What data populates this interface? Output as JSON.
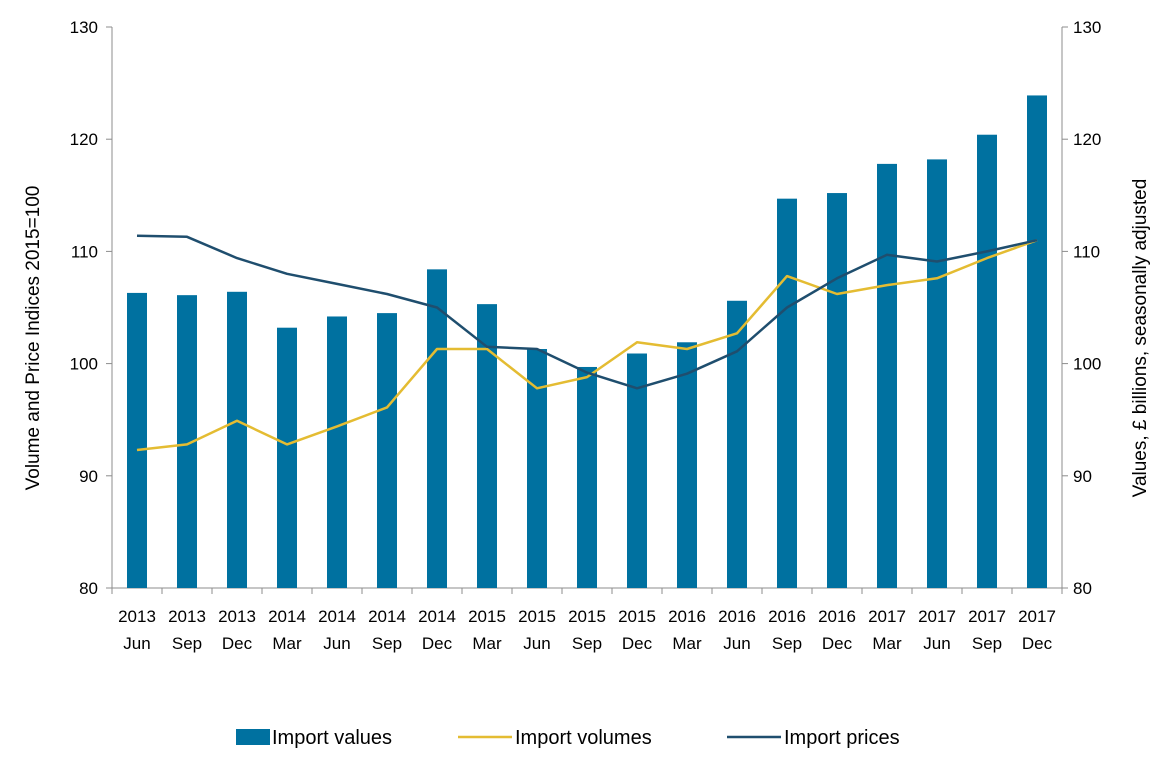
{
  "chart_data": {
    "type": "bar",
    "categories": [
      [
        "2013",
        "Jun"
      ],
      [
        "2013",
        "Sep"
      ],
      [
        "2013",
        "Dec"
      ],
      [
        "2014",
        "Mar"
      ],
      [
        "2014",
        "Jun"
      ],
      [
        "2014",
        "Sep"
      ],
      [
        "2014",
        "Dec"
      ],
      [
        "2015",
        "Mar"
      ],
      [
        "2015",
        "Jun"
      ],
      [
        "2015",
        "Sep"
      ],
      [
        "2015",
        "Dec"
      ],
      [
        "2016",
        "Mar"
      ],
      [
        "2016",
        "Jun"
      ],
      [
        "2016",
        "Sep"
      ],
      [
        "2016",
        "Dec"
      ],
      [
        "2017",
        "Mar"
      ],
      [
        "2017",
        "Jun"
      ],
      [
        "2017",
        "Sep"
      ],
      [
        "2017",
        "Dec"
      ]
    ],
    "series": [
      {
        "name": "Import values",
        "type": "bar",
        "axis": "right",
        "color": "#0071A0",
        "values": [
          106.3,
          106.1,
          106.4,
          103.2,
          104.2,
          104.5,
          108.4,
          105.3,
          101.3,
          99.7,
          100.9,
          101.9,
          105.6,
          114.7,
          115.2,
          117.8,
          118.2,
          120.4,
          123.9
        ]
      },
      {
        "name": "Import volumes",
        "type": "line",
        "axis": "left",
        "color": "#E4BC32",
        "values": [
          92.3,
          92.8,
          94.9,
          92.8,
          94.4,
          96.1,
          101.3,
          101.3,
          97.8,
          98.8,
          101.9,
          101.3,
          102.7,
          107.8,
          106.2,
          107.0,
          107.6,
          109.4,
          111.0
        ]
      },
      {
        "name": "Import prices",
        "type": "line",
        "axis": "left",
        "color": "#1F4E6E",
        "values": [
          111.4,
          111.3,
          109.4,
          108.0,
          107.1,
          106.2,
          105.0,
          101.5,
          101.3,
          99.2,
          97.8,
          99.1,
          101.1,
          105.0,
          107.6,
          109.7,
          109.1,
          110.0,
          111.0
        ]
      }
    ],
    "ylabel_left": "Volume and Price Indices 2015=100",
    "ylabel_right": "Values, £ billions, seasonally adjusted",
    "ylim_left": [
      80,
      130
    ],
    "ylim_right": [
      80,
      130
    ],
    "yticks": [
      80,
      90,
      100,
      110,
      120,
      130
    ],
    "grid": false,
    "legend_position": "bottom"
  }
}
